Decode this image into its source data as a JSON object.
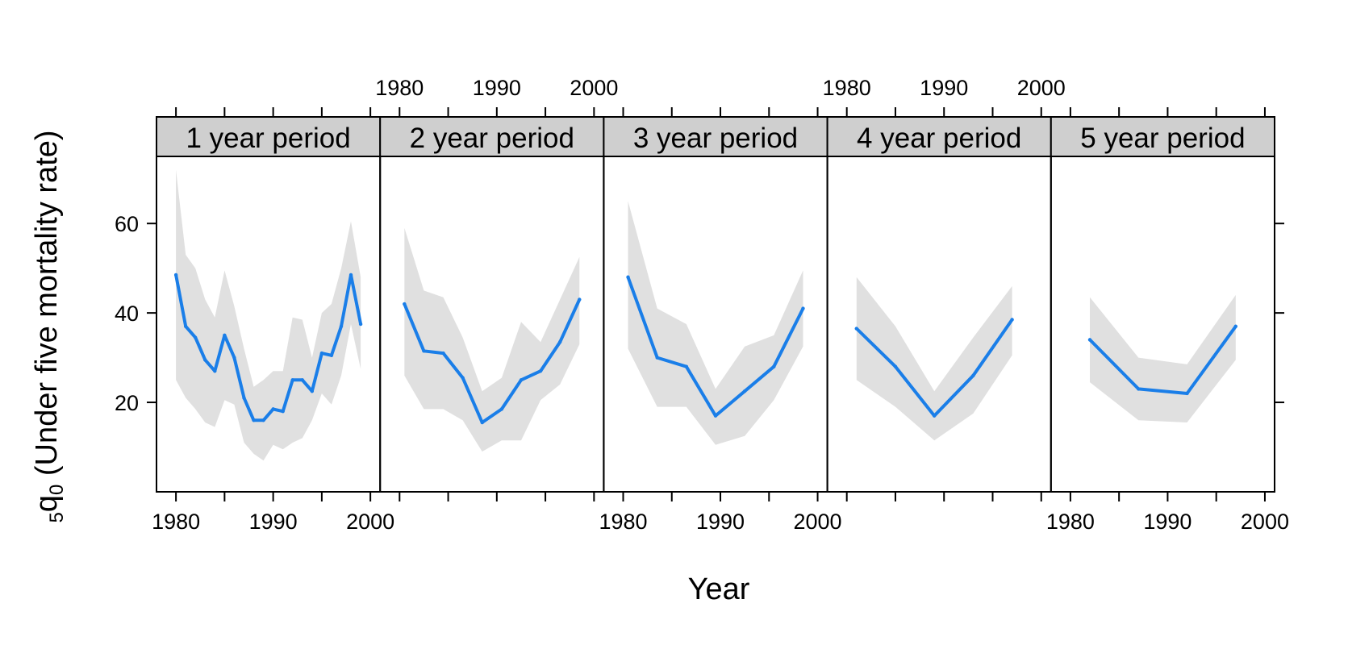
{
  "chart_data": {
    "type": "line",
    "layout": "trellis 5 panels x 1 row, shared y axis",
    "xlabel": "Year",
    "ylabel": {
      "prefix_sub": "5",
      "symbol": "q",
      "symbol_sub": "0",
      "text": " (Under five mortality rate)"
    },
    "xlim": [
      1978,
      2001
    ],
    "ylim": [
      0,
      75
    ],
    "x_ticks": [
      1980,
      1985,
      1990,
      1995,
      2000
    ],
    "x_tick_labels": [
      "1980",
      "1990",
      "2000"
    ],
    "y_ticks": [
      20,
      40,
      60
    ],
    "colors": {
      "line": "#1a7ee8",
      "band": "#e0e0e0",
      "strip": "#cfcfcf"
    },
    "panels": [
      {
        "label": "1 year period",
        "x": [
          1980,
          1981,
          1982,
          1983,
          1984,
          1985,
          1986,
          1987,
          1988,
          1989,
          1990,
          1991,
          1992,
          1993,
          1994,
          1995,
          1996,
          1997,
          1998,
          1999
        ],
        "y": [
          48.5,
          37,
          34.5,
          29.5,
          27,
          35,
          30,
          21,
          16,
          16,
          18.5,
          18,
          25,
          25,
          22.5,
          31,
          30.5,
          37,
          48.5,
          37.5
        ],
        "lower": [
          25,
          21,
          18.5,
          15.5,
          14.5,
          20.5,
          19.5,
          11,
          8.5,
          7,
          10.5,
          9.5,
          11,
          12,
          16,
          22,
          19.5,
          26,
          37.5,
          27.5
        ],
        "upper": [
          72,
          53,
          50,
          43,
          39,
          49.5,
          41.5,
          32,
          23.5,
          25,
          27,
          27,
          39,
          38.5,
          30,
          40,
          42,
          50,
          60.5,
          48
        ]
      },
      {
        "label": "2 year period",
        "x": [
          1980.5,
          1982.5,
          1984.5,
          1986.5,
          1988.5,
          1990.5,
          1992.5,
          1994.5,
          1996.5,
          1998.5
        ],
        "y": [
          42,
          31.5,
          31,
          25.5,
          15.5,
          18.5,
          25,
          27,
          33.5,
          43
        ],
        "lower": [
          26,
          18.5,
          18.5,
          16,
          9,
          11.5,
          11.5,
          20.5,
          24,
          33
        ],
        "upper": [
          59,
          45,
          43.5,
          34.5,
          22.5,
          25.5,
          38,
          33.5,
          43,
          52.5
        ]
      },
      {
        "label": "3 year period",
        "x": [
          1980.5,
          1983.5,
          1986.5,
          1989.5,
          1992.5,
          1995.5,
          1998.5
        ],
        "y": [
          48,
          30,
          28,
          17,
          22.5,
          28,
          41
        ],
        "lower": [
          32,
          19,
          19,
          10.5,
          12.5,
          20.5,
          32.5
        ],
        "upper": [
          65,
          41,
          37.5,
          23,
          32.5,
          35,
          49.5
        ]
      },
      {
        "label": "4 year period",
        "x": [
          1981,
          1985,
          1989,
          1993,
          1997
        ],
        "y": [
          36.5,
          28,
          17,
          26,
          38.5
        ],
        "lower": [
          25,
          19,
          11.5,
          17.5,
          30.5
        ],
        "upper": [
          48,
          37,
          22.5,
          34.5,
          46
        ]
      },
      {
        "label": "5 year period",
        "x": [
          1982,
          1987,
          1992,
          1997
        ],
        "y": [
          34,
          23,
          22,
          37
        ],
        "lower": [
          24.5,
          16,
          15.5,
          29.5
        ],
        "upper": [
          43.5,
          30,
          28.5,
          44
        ]
      }
    ]
  }
}
